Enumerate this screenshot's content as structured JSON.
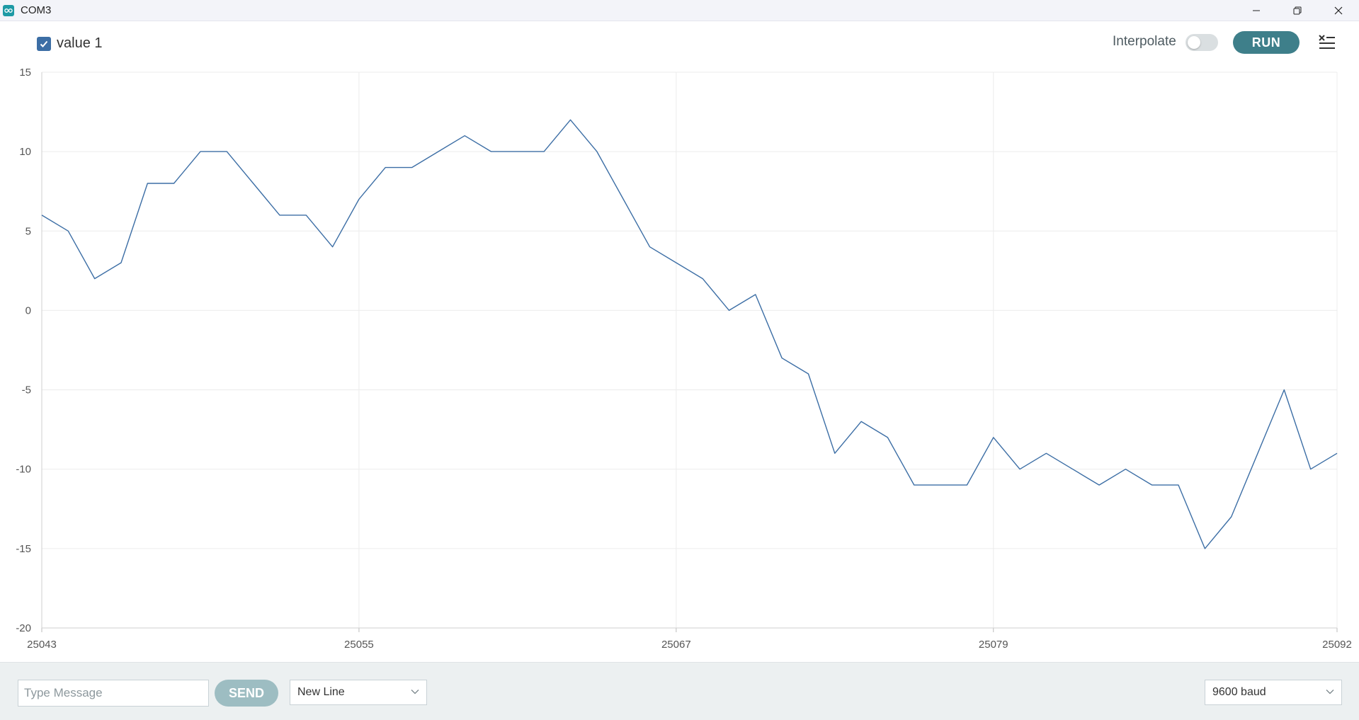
{
  "window": {
    "title": "COM3",
    "app_icon": "arduino-icon"
  },
  "toolbar": {
    "series_label": "value 1",
    "series_checked": true,
    "interpolate_label": "Interpolate",
    "interpolate_on": false,
    "run_label": "RUN"
  },
  "colors": {
    "series": "#3c6ea5",
    "run_button": "#3e7f8a",
    "send_button": "#9dbdc2",
    "bottom_bar": "#ecf0f1"
  },
  "chart_data": {
    "type": "line",
    "title": "",
    "xlabel": "",
    "ylabel": "",
    "xlim": [
      25043,
      25092
    ],
    "ylim": [
      -20,
      15
    ],
    "x_ticks": [
      25043,
      25055,
      25067,
      25079,
      25092
    ],
    "y_ticks": [
      15,
      10,
      5,
      0,
      -5,
      -10,
      -15,
      -20
    ],
    "grid": true,
    "series": [
      {
        "name": "value 1",
        "x": [
          25043,
          25044,
          25045,
          25046,
          25047,
          25048,
          25049,
          25050,
          25051,
          25052,
          25053,
          25054,
          25055,
          25056,
          25057,
          25058,
          25059,
          25060,
          25061,
          25062,
          25063,
          25064,
          25065,
          25066,
          25067,
          25068,
          25069,
          25070,
          25071,
          25072,
          25073,
          25074,
          25075,
          25076,
          25077,
          25078,
          25079,
          25080,
          25081,
          25082,
          25083,
          25084,
          25085,
          25086,
          25087,
          25088,
          25089,
          25090,
          25091,
          25092
        ],
        "y": [
          6,
          5,
          2,
          3,
          8,
          8,
          10,
          10,
          8,
          6,
          6,
          4,
          7,
          9,
          9,
          10,
          11,
          10,
          10,
          10,
          12,
          10,
          7,
          4,
          3,
          2,
          0,
          1,
          -3,
          -4,
          -9,
          -7,
          -8,
          -11,
          -11,
          -11,
          -8,
          -10,
          -9,
          -10,
          -11,
          -10,
          -11,
          -11,
          -15,
          -13,
          -9,
          -5,
          -10,
          -9
        ]
      }
    ]
  },
  "bottom": {
    "message_placeholder": "Type Message",
    "send_label": "SEND",
    "line_ending": "New Line",
    "baud": "9600 baud"
  }
}
